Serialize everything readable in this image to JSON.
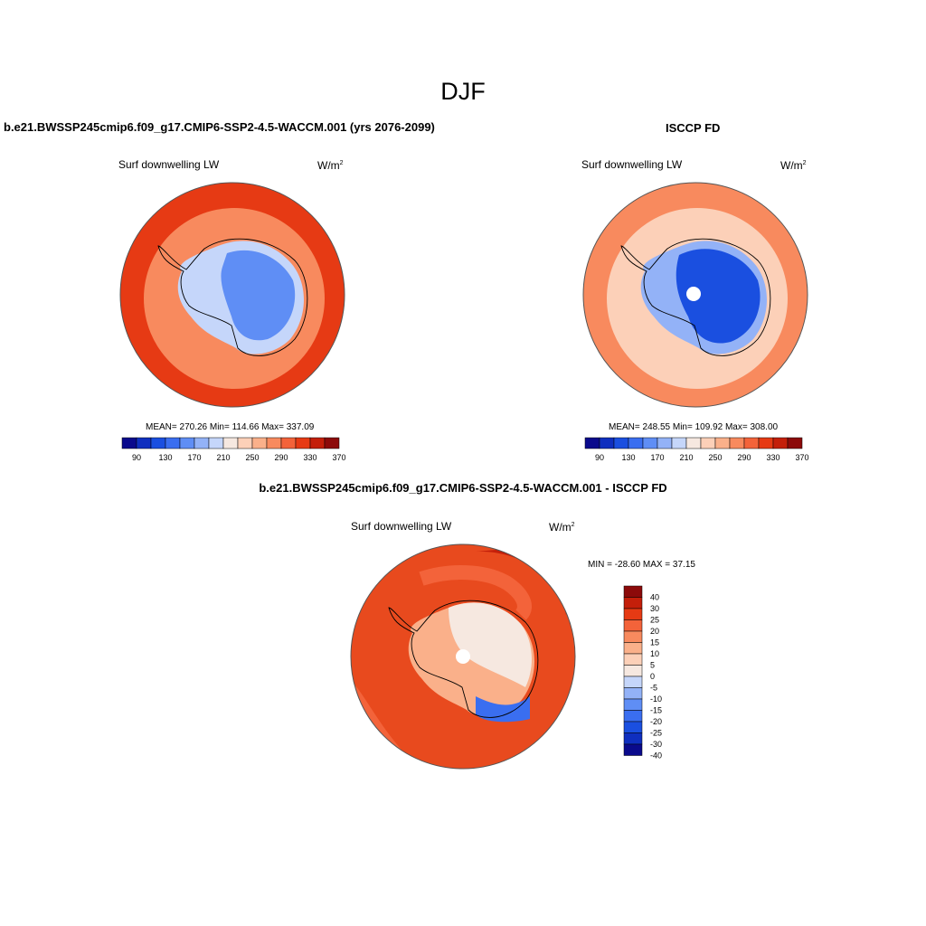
{
  "figure": {
    "title": "DJF"
  },
  "panels": {
    "model": {
      "title": "b.e21.BWSSP245cmip6.f09_g17.CMIP6-SSP2-4.5-WACCM.001 (yrs 2076-2099)",
      "variable": "Surf downwelling LW",
      "units": "W/m",
      "units_exp": "2",
      "stats": "MEAN= 270.26  Min= 114.66  Max= 337.09",
      "field": {
        "continent_level": 0.25,
        "coast_level": 0.45,
        "ocean_inner_level": 0.72,
        "ocean_outer_level": 0.86
      }
    },
    "obs": {
      "title": "ISCCP FD",
      "variable": "Surf downwelling LW",
      "units": "W/m",
      "units_exp": "2",
      "stats": "MEAN= 248.55  Min= 109.92  Max= 308.00",
      "field": {
        "continent_level": 0.15,
        "coast_level": 0.38,
        "ocean_inner_level": 0.58,
        "ocean_outer_level": 0.7
      }
    },
    "diff": {
      "title": "b.e21.BWSSP245cmip6.f09_g17.CMIP6-SSP2-4.5-WACCM.001 - ISCCP FD",
      "variable": "Surf downwelling LW",
      "units": "W/m",
      "units_exp": "2",
      "stats": "MIN = -28.60 MAX =  37.15"
    }
  },
  "colorbar_abs": {
    "colors": [
      "#0a0a8c",
      "#0f2fbf",
      "#1a4fe0",
      "#3a6ef0",
      "#5f8ef5",
      "#93b2f7",
      "#c5d6fa",
      "#f6e8e0",
      "#fcd0b8",
      "#fab08a",
      "#f88a5e",
      "#f3633a",
      "#e63a14",
      "#c41f0a",
      "#8c0a0a"
    ],
    "labels": [
      "90",
      "130",
      "170",
      "210",
      "250",
      "290",
      "330",
      "370"
    ]
  },
  "colorbar_diff": {
    "colors": [
      "#0a0a8c",
      "#0f2fbf",
      "#1a4fe0",
      "#3a6ef0",
      "#5f8ef5",
      "#93b2f7",
      "#c5d6fa",
      "#f6e8e0",
      "#fcd0b8",
      "#fab08a",
      "#f88a5e",
      "#f3633a",
      "#e63a14",
      "#c41f0a",
      "#8c0a0a"
    ],
    "labels": [
      "40",
      "30",
      "25",
      "20",
      "15",
      "10",
      "5",
      "0",
      "-5",
      "-10",
      "-15",
      "-20",
      "-25",
      "-30",
      "-40"
    ]
  }
}
